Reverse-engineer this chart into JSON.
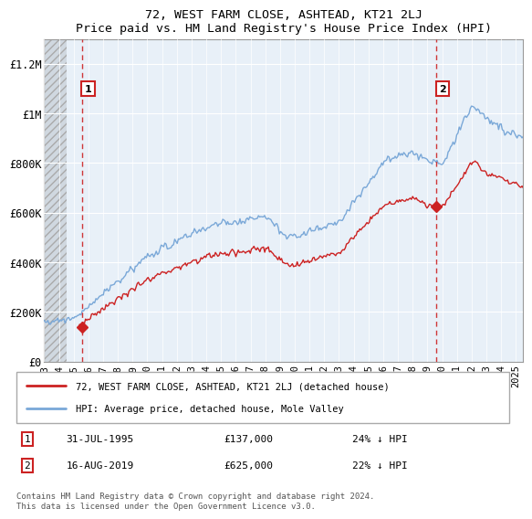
{
  "title": "72, WEST FARM CLOSE, ASHTEAD, KT21 2LJ",
  "subtitle": "Price paid vs. HM Land Registry's House Price Index (HPI)",
  "ylabel_ticks": [
    "£0",
    "£200K",
    "£400K",
    "£600K",
    "£800K",
    "£1M",
    "£1.2M"
  ],
  "ytick_vals": [
    0,
    200000,
    400000,
    600000,
    800000,
    1000000,
    1200000
  ],
  "ylim": [
    0,
    1300000
  ],
  "xlim_start": 1993.0,
  "xlim_end": 2025.5,
  "hpi_color": "#7aa8d8",
  "sale_color": "#cc2222",
  "annotation1": {
    "label": "1",
    "date_x": 1995.58,
    "price": 137000,
    "text": "31-JUL-1995",
    "amount": "£137,000",
    "pct": "24% ↓ HPI"
  },
  "annotation2": {
    "label": "2",
    "date_x": 2019.62,
    "price": 625000,
    "text": "16-AUG-2019",
    "amount": "£625,000",
    "pct": "22% ↓ HPI"
  },
  "legend_line1": "72, WEST FARM CLOSE, ASHTEAD, KT21 2LJ (detached house)",
  "legend_line2": "HPI: Average price, detached house, Mole Valley",
  "footer": "Contains HM Land Registry data © Crown copyright and database right 2024.\nThis data is licensed under the Open Government Licence v3.0.",
  "xtick_years": [
    1993,
    1994,
    1995,
    1996,
    1997,
    1998,
    1999,
    2000,
    2001,
    2002,
    2003,
    2004,
    2005,
    2006,
    2007,
    2008,
    2009,
    2010,
    2011,
    2012,
    2013,
    2014,
    2015,
    2016,
    2017,
    2018,
    2019,
    2020,
    2021,
    2022,
    2023,
    2024,
    2025
  ]
}
